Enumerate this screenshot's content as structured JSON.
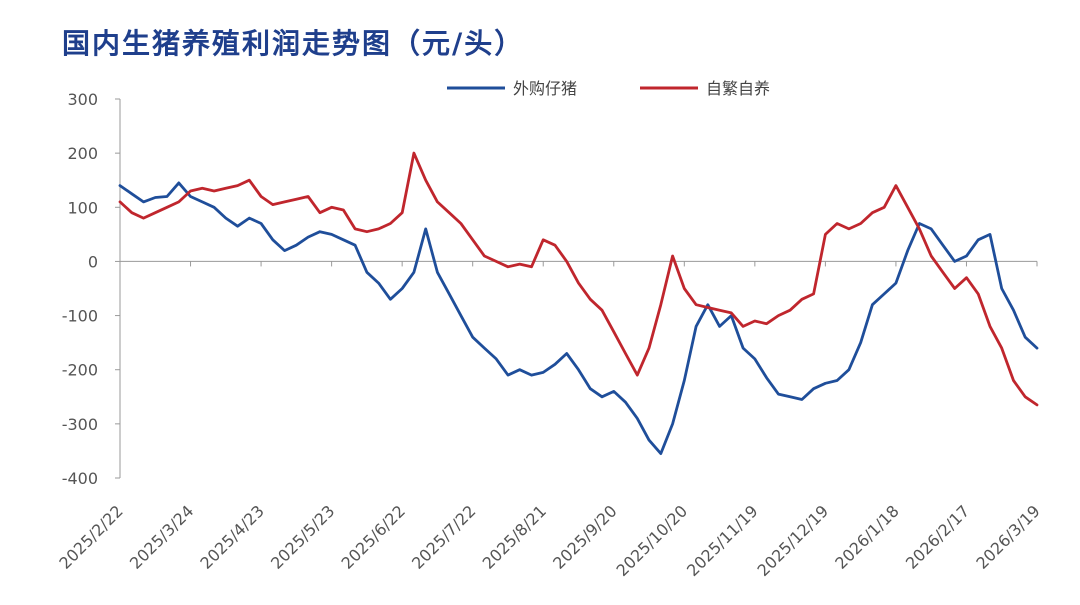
{
  "chart_data": {
    "type": "line",
    "title": "国内生猪养殖利润走势图（元/头）",
    "ylim": [
      -400,
      300
    ],
    "yticks": [
      300,
      200,
      100,
      0,
      -100,
      -200,
      -300,
      -400
    ],
    "xticks": [
      "2025/2/22",
      "2025/3/24",
      "2025/4/23",
      "2025/5/23",
      "2025/6/22",
      "2025/7/22",
      "2025/8/21",
      "2025/9/20",
      "2025/10/20",
      "2025/11/19",
      "2025/12/19",
      "2026/1/18",
      "2026/2/17",
      "2026/3/19"
    ],
    "legend_position": "top-right",
    "x": [
      "2025/2/22",
      "2025/2/27",
      "2025/3/4",
      "2025/3/9",
      "2025/3/14",
      "2025/3/19",
      "2025/3/24",
      "2025/3/29",
      "2025/4/3",
      "2025/4/8",
      "2025/4/13",
      "2025/4/18",
      "2025/4/23",
      "2025/4/28",
      "2025/5/3",
      "2025/5/8",
      "2025/5/13",
      "2025/5/18",
      "2025/5/23",
      "2025/5/28",
      "2025/6/2",
      "2025/6/7",
      "2025/6/12",
      "2025/6/17",
      "2025/6/22",
      "2025/6/27",
      "2025/7/2",
      "2025/7/7",
      "2025/7/12",
      "2025/7/17",
      "2025/7/22",
      "2025/7/27",
      "2025/8/1",
      "2025/8/6",
      "2025/8/11",
      "2025/8/16",
      "2025/8/21",
      "2025/8/26",
      "2025/8/31",
      "2025/9/5",
      "2025/9/10",
      "2025/9/15",
      "2025/9/20",
      "2025/9/25",
      "2025/9/30",
      "2025/10/5",
      "2025/10/10",
      "2025/10/15",
      "2025/10/20",
      "2025/10/25",
      "2025/10/30",
      "2025/11/4",
      "2025/11/9",
      "2025/11/14",
      "2025/11/19",
      "2025/11/24",
      "2025/11/29",
      "2025/12/4",
      "2025/12/9",
      "2025/12/14",
      "2025/12/19",
      "2025/12/24",
      "2025/12/29",
      "2026/1/3",
      "2026/1/8",
      "2026/1/13",
      "2026/1/18",
      "2026/1/23",
      "2026/1/28",
      "2026/2/2",
      "2026/2/7",
      "2026/2/12",
      "2026/2/17",
      "2026/2/22",
      "2026/2/27",
      "2026/3/4",
      "2026/3/9",
      "2026/3/14",
      "2026/3/19"
    ],
    "series": [
      {
        "name": "外购仔猪",
        "color": "#1f4e9a",
        "values": [
          140,
          125,
          110,
          118,
          120,
          145,
          120,
          110,
          100,
          80,
          65,
          80,
          70,
          40,
          20,
          30,
          45,
          55,
          50,
          40,
          30,
          -20,
          -40,
          -70,
          -50,
          -20,
          60,
          -20,
          -60,
          -100,
          -140,
          -160,
          -180,
          -210,
          -200,
          -210,
          -205,
          -190,
          -170,
          -200,
          -235,
          -250,
          -240,
          -260,
          -290,
          -330,
          -355,
          -300,
          -220,
          -120,
          -80,
          -120,
          -100,
          -160,
          -180,
          -215,
          -245,
          -250,
          -255,
          -235,
          -225,
          -220,
          -200,
          -150,
          -80,
          -60,
          -40,
          20,
          70,
          60,
          30,
          0,
          10,
          40,
          50,
          -50,
          -90,
          -140,
          -160
        ]
      },
      {
        "name": "自繁自养",
        "color": "#c0262d",
        "values": [
          110,
          90,
          80,
          90,
          100,
          110,
          130,
          135,
          130,
          135,
          140,
          150,
          120,
          105,
          110,
          115,
          120,
          90,
          100,
          95,
          60,
          55,
          60,
          70,
          90,
          200,
          150,
          110,
          90,
          70,
          40,
          10,
          0,
          -10,
          -5,
          -10,
          40,
          30,
          0,
          -40,
          -70,
          -90,
          -130,
          -170,
          -210,
          -160,
          -80,
          10,
          -50,
          -80,
          -85,
          -90,
          -95,
          -120,
          -110,
          -115,
          -100,
          -90,
          -70,
          -60,
          50,
          70,
          60,
          70,
          90,
          100,
          140,
          100,
          60,
          10,
          -20,
          -50,
          -30,
          -60,
          -120,
          -160,
          -220,
          -250,
          -265
        ]
      }
    ]
  }
}
